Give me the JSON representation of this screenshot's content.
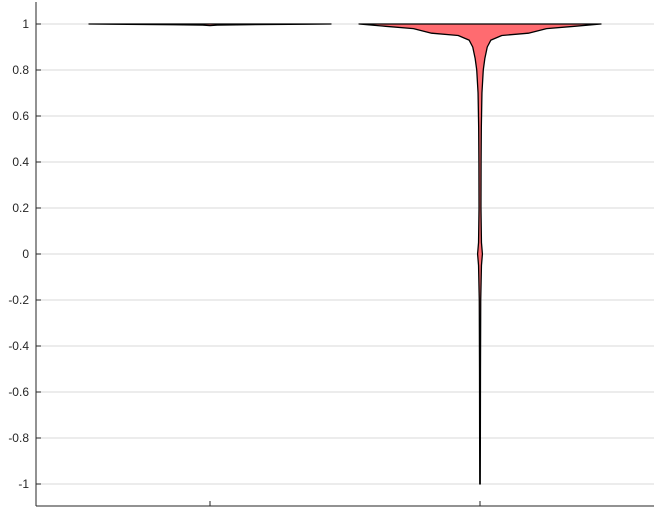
{
  "chart_data": {
    "type": "violin",
    "title": "",
    "xlabel": "",
    "ylabel": "",
    "ylim": [
      -1,
      1
    ],
    "yticks": [
      1,
      0.8,
      0.6,
      0.4,
      0.2,
      0,
      -0.2,
      -0.4,
      -0.6,
      -0.8,
      -1
    ],
    "ytick_labels": [
      "1",
      "0.8",
      "0.6",
      "0.4",
      "0.2",
      "0",
      "-0.2",
      "-0.4",
      "-0.6",
      "-0.8",
      "-1"
    ],
    "grid": true,
    "categories": [
      "",
      ""
    ],
    "series": [
      {
        "fill_color": "#ff6b70",
        "edge_color": "#000000",
        "profile": [
          {
            "y": 1.0,
            "w": 1.0
          },
          {
            "y": 0.999,
            "w": 0.8
          },
          {
            "y": 0.997,
            "w": 0.3
          },
          {
            "y": 0.995,
            "w": 0.06
          },
          {
            "y": 0.993,
            "w": 0.0
          }
        ]
      },
      {
        "fill_color": "#ff6b70",
        "edge_color": "#000000",
        "profile": [
          {
            "y": 1.0,
            "w": 1.0
          },
          {
            "y": 0.99,
            "w": 0.78
          },
          {
            "y": 0.98,
            "w": 0.55
          },
          {
            "y": 0.96,
            "w": 0.4
          },
          {
            "y": 0.95,
            "w": 0.18
          },
          {
            "y": 0.93,
            "w": 0.09
          },
          {
            "y": 0.9,
            "w": 0.06
          },
          {
            "y": 0.85,
            "w": 0.04
          },
          {
            "y": 0.8,
            "w": 0.027
          },
          {
            "y": 0.7,
            "w": 0.016
          },
          {
            "y": 0.55,
            "w": 0.011
          },
          {
            "y": 0.4,
            "w": 0.009
          },
          {
            "y": 0.2,
            "w": 0.008
          },
          {
            "y": 0.05,
            "w": 0.012
          },
          {
            "y": 0.0,
            "w": 0.02
          },
          {
            "y": -0.05,
            "w": 0.012
          },
          {
            "y": -0.2,
            "w": 0.006
          },
          {
            "y": -0.5,
            "w": 0.004
          },
          {
            "y": -0.8,
            "w": 0.003
          },
          {
            "y": -1.0,
            "w": 0.002
          }
        ]
      }
    ]
  }
}
